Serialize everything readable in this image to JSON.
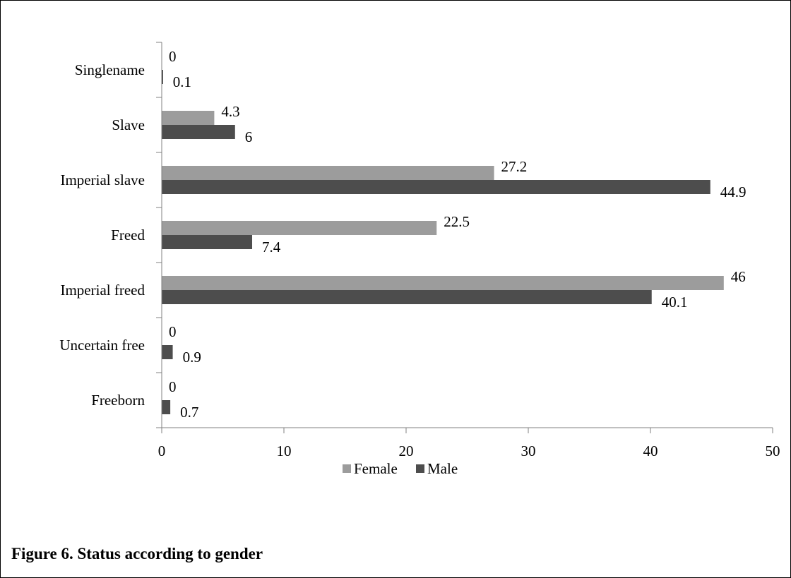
{
  "figure": {
    "caption": "Figure 6. Status according to gender"
  },
  "chart_data": {
    "type": "bar",
    "orientation": "horizontal",
    "categories": [
      "Singlename",
      "Slave",
      "Imperial slave",
      "Freed",
      "Imperial freed",
      "Uncertain free",
      "Freeborn"
    ],
    "series": [
      {
        "name": "Female",
        "values": [
          0,
          4.3,
          27.2,
          22.5,
          46,
          0,
          0
        ],
        "color": "#9c9c9c"
      },
      {
        "name": "Male",
        "values": [
          0.1,
          6,
          44.9,
          7.4,
          40.1,
          0.9,
          0.7
        ],
        "color": "#4d4d4d"
      }
    ],
    "xlim": [
      0,
      50
    ],
    "xticks": [
      "0",
      "10",
      "20",
      "30",
      "40",
      "50"
    ],
    "legend_position": "bottom",
    "grid": false
  }
}
